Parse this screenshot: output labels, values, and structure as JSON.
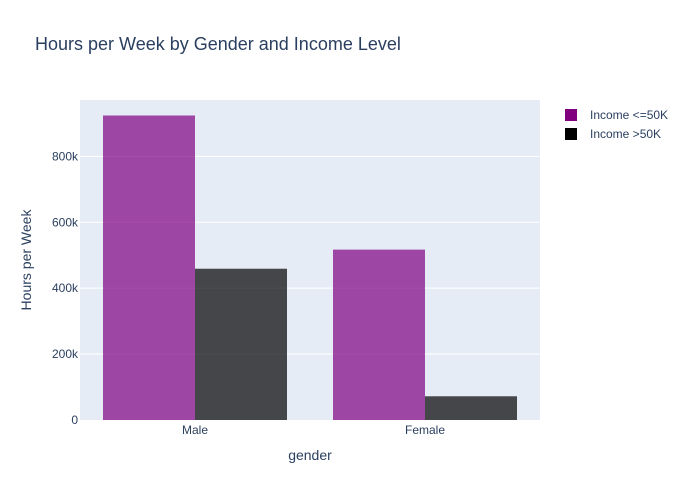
{
  "chart_data": {
    "type": "bar",
    "title": "Hours per Week by Gender and Income Level",
    "xlabel": "gender",
    "ylabel": "Hours per Week",
    "categories": [
      "Male",
      "Female"
    ],
    "series": [
      {
        "name": "Income <=50K",
        "values": [
          924000,
          517000
        ],
        "color": "#800080"
      },
      {
        "name": "Income >50K",
        "values": [
          459000,
          72000
        ],
        "color": "#000000"
      }
    ],
    "ylim": [
      0,
      971000
    ],
    "yticks": [
      {
        "value": 0,
        "label": "0"
      },
      {
        "value": 200000,
        "label": "200k"
      },
      {
        "value": 400000,
        "label": "400k"
      },
      {
        "value": 600000,
        "label": "600k"
      },
      {
        "value": 800000,
        "label": "800k"
      }
    ],
    "grid": true,
    "legend_position": "top-right",
    "bar_opacity": 0.7,
    "plot_background": "#e5ecf6"
  }
}
